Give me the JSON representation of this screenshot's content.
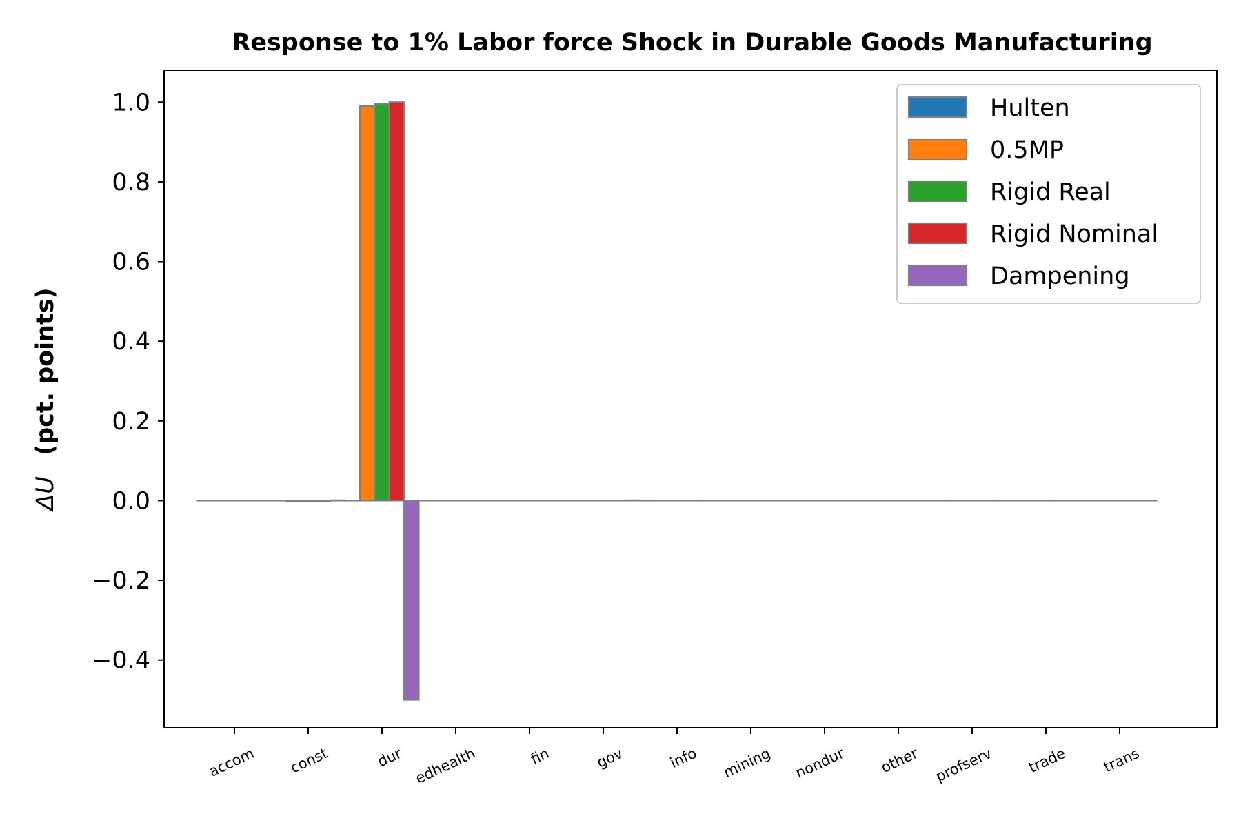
{
  "chart_data": {
    "type": "bar",
    "title": "Response to 1% Labor force Shock in Durable Goods Manufacturing",
    "ylabel_symbol": "ΔU",
    "ylabel_text": "(pct. points)",
    "xlabel": "",
    "ylim": [
      -0.57,
      1.08
    ],
    "yticks": [
      -0.4,
      -0.2,
      0.0,
      0.2,
      0.4,
      0.6,
      0.8,
      1.0
    ],
    "ytick_labels": [
      "−0.4",
      "−0.2",
      "0.0",
      "0.2",
      "0.4",
      "0.6",
      "0.8",
      "1.0"
    ],
    "categories": [
      "accom",
      "const",
      "dur",
      "edhealth",
      "fin",
      "gov",
      "info",
      "mining",
      "nondur",
      "other",
      "profserv",
      "trade",
      "trans"
    ],
    "series": [
      {
        "name": "Hulten",
        "color": "#1f77b4",
        "values": [
          0,
          0,
          0,
          0,
          0,
          0,
          0,
          0,
          0,
          0,
          0,
          0,
          0
        ]
      },
      {
        "name": "0.5MP",
        "color": "#ff7f0e",
        "values": [
          0,
          -0.002,
          0.99,
          0,
          0,
          0,
          0,
          0,
          0,
          0,
          0,
          0,
          0
        ]
      },
      {
        "name": "Rigid Real",
        "color": "#2ca02c",
        "values": [
          0,
          -0.002,
          0.996,
          0,
          0,
          0,
          0,
          0,
          0,
          0,
          0,
          0,
          0
        ]
      },
      {
        "name": "Rigid Nominal",
        "color": "#d62728",
        "values": [
          0,
          -0.002,
          1.0,
          0,
          0,
          0,
          0,
          0,
          0,
          0,
          0,
          0,
          0
        ]
      },
      {
        "name": "Dampening",
        "color": "#9467bd",
        "values": [
          0,
          0.001,
          -0.5,
          0,
          0,
          0.001,
          0,
          0,
          0,
          0,
          0,
          0,
          0
        ]
      }
    ],
    "grid": false,
    "legend_position": "top-right",
    "bar_edge_color": "#808080"
  }
}
